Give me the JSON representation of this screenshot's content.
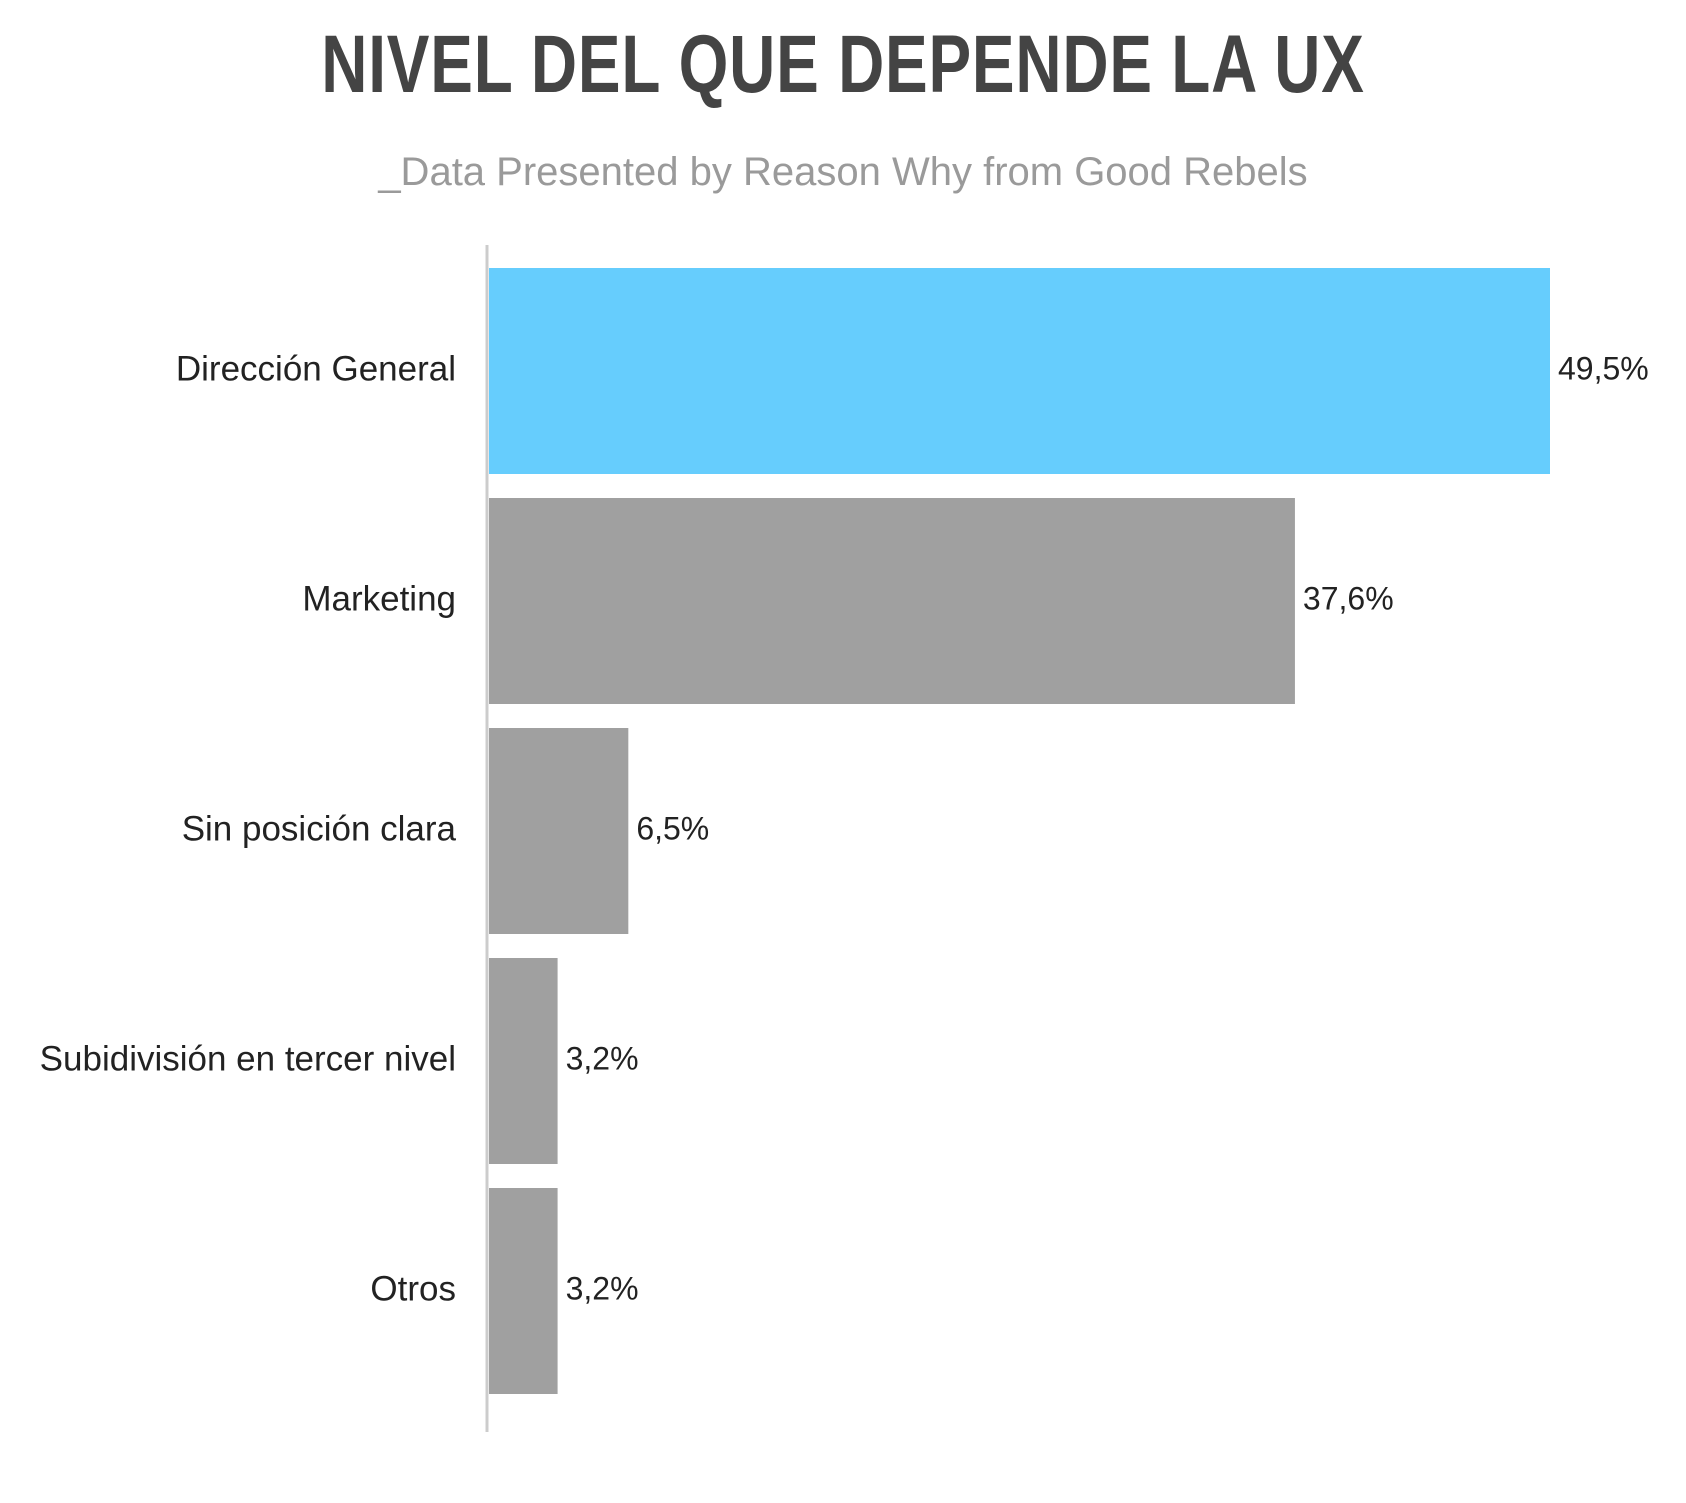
{
  "title": "NIVEL DEL QUE DEPENDE LA UX",
  "subtitle": "_Data Presented by Reason Why from Good Rebels",
  "chart_data": {
    "type": "bar",
    "orientation": "horizontal",
    "categories": [
      "Dirección General",
      "Marketing",
      "Sin posición clara",
      "Subidivisión en tercer nivel",
      "Otros"
    ],
    "values": [
      49.5,
      37.6,
      6.5,
      3.2,
      3.2
    ],
    "value_labels": [
      "49,5%",
      "37,6%",
      "6,5%",
      "3,2%",
      "3,2%"
    ],
    "xlim": [
      0,
      49.5
    ],
    "grid": false,
    "legend": "none",
    "colors": {
      "highlight": "#66cdfd",
      "default": "#a0a0a0",
      "axis": "#cccccc"
    },
    "highlight_index": 0
  }
}
